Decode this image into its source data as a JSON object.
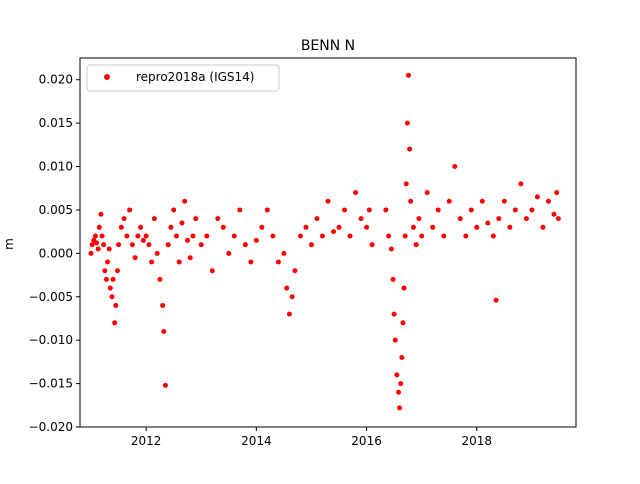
{
  "chart_data": {
    "type": "scatter",
    "title": "BENN N",
    "xlabel": "",
    "ylabel": "m",
    "xlim": [
      2010.8,
      2019.8
    ],
    "ylim": [
      -0.02,
      0.0225
    ],
    "x_ticks": [
      2012,
      2014,
      2016,
      2018
    ],
    "x_tick_labels": [
      "2012",
      "2014",
      "2016",
      "2018"
    ],
    "y_ticks": [
      -0.02,
      -0.015,
      -0.01,
      -0.005,
      0.0,
      0.005,
      0.01,
      0.015,
      0.02
    ],
    "y_tick_labels": [
      "−0.020",
      "−0.015",
      "−0.010",
      "−0.005",
      "0.000",
      "0.005",
      "0.010",
      "0.015",
      "0.020"
    ],
    "grid": false,
    "legend_position": "upper-left",
    "series": [
      {
        "name": "repro2018a (IGS14)",
        "color": "#ff0000",
        "marker": "circle",
        "x": [
          2011.0,
          2011.02,
          2011.05,
          2011.08,
          2011.1,
          2011.13,
          2011.15,
          2011.18,
          2011.2,
          2011.23,
          2011.25,
          2011.28,
          2011.3,
          2011.33,
          2011.35,
          2011.38,
          2011.4,
          2011.43,
          2011.45,
          2011.48,
          2011.5,
          2011.55,
          2011.6,
          2011.65,
          2011.7,
          2011.75,
          2011.8,
          2011.85,
          2011.9,
          2011.95,
          2012.0,
          2012.05,
          2012.1,
          2012.15,
          2012.2,
          2012.25,
          2012.3,
          2012.32,
          2012.35,
          2012.4,
          2012.45,
          2012.5,
          2012.55,
          2012.6,
          2012.65,
          2012.7,
          2012.75,
          2012.8,
          2012.85,
          2012.9,
          2013.0,
          2013.1,
          2013.2,
          2013.3,
          2013.4,
          2013.5,
          2013.6,
          2013.7,
          2013.8,
          2013.9,
          2014.0,
          2014.1,
          2014.2,
          2014.3,
          2014.4,
          2014.5,
          2014.55,
          2014.6,
          2014.65,
          2014.7,
          2014.8,
          2014.9,
          2015.0,
          2015.1,
          2015.2,
          2015.3,
          2015.4,
          2015.5,
          2015.6,
          2015.7,
          2015.8,
          2015.9,
          2016.0,
          2016.05,
          2016.1,
          2016.35,
          2016.4,
          2016.45,
          2016.48,
          2016.5,
          2016.52,
          2016.55,
          2016.58,
          2016.6,
          2016.62,
          2016.64,
          2016.66,
          2016.68,
          2016.7,
          2016.72,
          2016.74,
          2016.76,
          2016.78,
          2016.8,
          2016.85,
          2016.9,
          2016.95,
          2017.0,
          2017.1,
          2017.2,
          2017.3,
          2017.4,
          2017.5,
          2017.6,
          2017.7,
          2017.8,
          2017.9,
          2018.0,
          2018.1,
          2018.2,
          2018.3,
          2018.35,
          2018.4,
          2018.5,
          2018.6,
          2018.7,
          2018.8,
          2018.9,
          2019.0,
          2019.1,
          2019.2,
          2019.3,
          2019.4,
          2019.45,
          2019.48
        ],
        "y": [
          0.0,
          0.001,
          0.0015,
          0.002,
          0.0012,
          0.0005,
          0.003,
          0.0045,
          0.002,
          0.001,
          -0.002,
          -0.003,
          -0.001,
          0.0005,
          -0.004,
          -0.005,
          -0.003,
          -0.008,
          -0.006,
          -0.002,
          0.001,
          0.003,
          0.004,
          0.002,
          0.005,
          0.001,
          -0.0005,
          0.002,
          0.003,
          0.0015,
          0.002,
          0.001,
          -0.001,
          0.004,
          0.0,
          -0.003,
          -0.006,
          -0.009,
          -0.0152,
          0.001,
          0.003,
          0.005,
          0.002,
          -0.001,
          0.0035,
          0.006,
          0.0015,
          -0.0005,
          0.002,
          0.004,
          0.001,
          0.002,
          -0.002,
          0.004,
          0.003,
          0.0,
          0.002,
          0.005,
          0.001,
          -0.001,
          0.0015,
          0.003,
          0.005,
          0.002,
          -0.001,
          0.0,
          -0.004,
          -0.007,
          -0.005,
          -0.002,
          0.002,
          0.003,
          0.001,
          0.004,
          0.002,
          0.006,
          0.0025,
          0.003,
          0.005,
          0.002,
          0.007,
          0.004,
          0.003,
          0.005,
          0.001,
          0.005,
          0.002,
          0.0005,
          -0.003,
          -0.007,
          -0.01,
          -0.014,
          -0.016,
          -0.0178,
          -0.015,
          -0.012,
          -0.008,
          -0.004,
          0.002,
          0.008,
          0.015,
          0.0205,
          0.012,
          0.006,
          0.003,
          0.001,
          0.004,
          0.002,
          0.007,
          0.003,
          0.005,
          0.002,
          0.006,
          0.01,
          0.004,
          0.002,
          0.005,
          0.003,
          0.006,
          0.0035,
          0.002,
          -0.0054,
          0.004,
          0.006,
          0.003,
          0.005,
          0.008,
          0.004,
          0.005,
          0.0065,
          0.003,
          0.006,
          0.0045,
          0.007,
          0.004
        ]
      }
    ]
  }
}
